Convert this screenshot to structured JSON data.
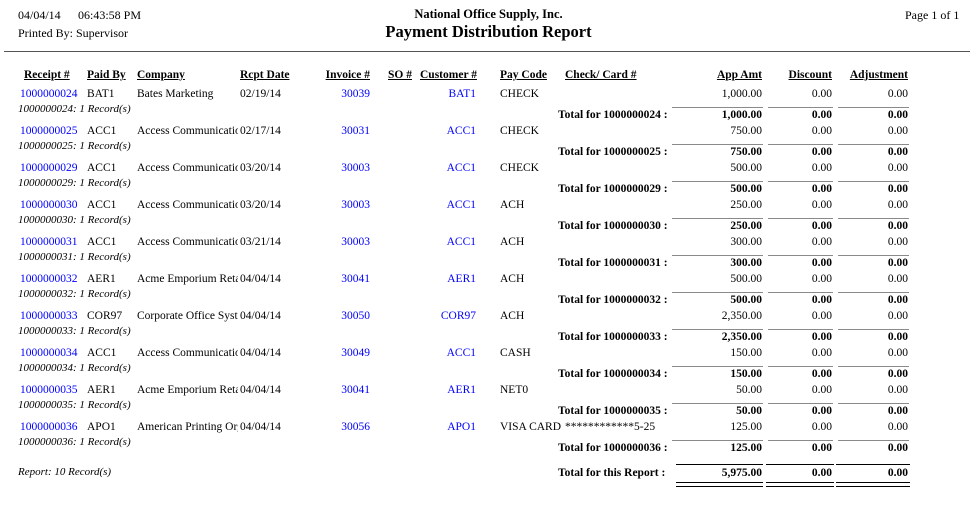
{
  "colors": {
    "link_blue": "#0000ff",
    "group_rule_gray": "#8a8a8a",
    "report_rule_black": "#000000"
  },
  "page_header": {
    "date": "04/04/14",
    "time": "06:43:58 PM",
    "printed_by": "Printed By: Supervisor",
    "company_name": "National Office Supply, Inc.",
    "report_title": "Payment Distribution Report",
    "page_info": "Page 1 of 1"
  },
  "columns": {
    "receipt": "Receipt #",
    "paid_by": "Paid By",
    "company": "Company",
    "rcpt_date": "Rcpt Date",
    "invoice": "Invoice #",
    "so": "SO #",
    "customer": "Customer #",
    "pay_code": "Pay Code",
    "check_card": "Check/ Card #",
    "app_amt": "App Amt",
    "discount": "Discount",
    "adjustment": "Adjustment"
  },
  "table": {
    "groups": [
      {
        "receipt": "1000000024",
        "paid_by": "BAT1",
        "company": "Bates Marketing",
        "rcpt_date": "02/19/14",
        "invoice": "30039",
        "so": "",
        "customer": "BAT1",
        "pay_code": "CHECK",
        "check_card": "",
        "app_amt": "1,000.00",
        "discount": "0.00",
        "adjustment": "0.00",
        "record_note": "1000000024: 1 Record(s)",
        "total_label": "Total for 1000000024 :",
        "total_app_amt": "1,000.00",
        "total_discount": "0.00",
        "total_adjustment": "0.00"
      },
      {
        "receipt": "1000000025",
        "paid_by": "ACC1",
        "company": "Access Communication",
        "rcpt_date": "02/17/14",
        "invoice": "30031",
        "so": "",
        "customer": "ACC1",
        "pay_code": "CHECK",
        "check_card": "",
        "app_amt": "750.00",
        "discount": "0.00",
        "adjustment": "0.00",
        "record_note": "1000000025: 1 Record(s)",
        "total_label": "Total for 1000000025 :",
        "total_app_amt": "750.00",
        "total_discount": "0.00",
        "total_adjustment": "0.00"
      },
      {
        "receipt": "1000000029",
        "paid_by": "ACC1",
        "company": "Access Communication",
        "rcpt_date": "03/20/14",
        "invoice": "30003",
        "so": "",
        "customer": "ACC1",
        "pay_code": "CHECK",
        "check_card": "",
        "app_amt": "500.00",
        "discount": "0.00",
        "adjustment": "0.00",
        "record_note": "1000000029: 1 Record(s)",
        "total_label": "Total for 1000000029 :",
        "total_app_amt": "500.00",
        "total_discount": "0.00",
        "total_adjustment": "0.00"
      },
      {
        "receipt": "1000000030",
        "paid_by": "ACC1",
        "company": "Access Communication",
        "rcpt_date": "03/20/14",
        "invoice": "30003",
        "so": "",
        "customer": "ACC1",
        "pay_code": "ACH",
        "check_card": "",
        "app_amt": "250.00",
        "discount": "0.00",
        "adjustment": "0.00",
        "record_note": "1000000030: 1 Record(s)",
        "total_label": "Total for 1000000030 :",
        "total_app_amt": "250.00",
        "total_discount": "0.00",
        "total_adjustment": "0.00"
      },
      {
        "receipt": "1000000031",
        "paid_by": "ACC1",
        "company": "Access Communication",
        "rcpt_date": "03/21/14",
        "invoice": "30003",
        "so": "",
        "customer": "ACC1",
        "pay_code": "ACH",
        "check_card": "",
        "app_amt": "300.00",
        "discount": "0.00",
        "adjustment": "0.00",
        "record_note": "1000000031: 1 Record(s)",
        "total_label": "Total for 1000000031 :",
        "total_app_amt": "300.00",
        "total_discount": "0.00",
        "total_adjustment": "0.00"
      },
      {
        "receipt": "1000000032",
        "paid_by": "AER1",
        "company": "Acme Emporium Retail",
        "rcpt_date": "04/04/14",
        "invoice": "30041",
        "so": "",
        "customer": "AER1",
        "pay_code": "ACH",
        "check_card": "",
        "app_amt": "500.00",
        "discount": "0.00",
        "adjustment": "0.00",
        "record_note": "1000000032: 1 Record(s)",
        "total_label": "Total for 1000000032 :",
        "total_app_amt": "500.00",
        "total_discount": "0.00",
        "total_adjustment": "0.00"
      },
      {
        "receipt": "1000000033",
        "paid_by": "COR97",
        "company": "Corporate Office System",
        "rcpt_date": "04/04/14",
        "invoice": "30050",
        "so": "",
        "customer": "COR97",
        "pay_code": "ACH",
        "check_card": "",
        "app_amt": "2,350.00",
        "discount": "0.00",
        "adjustment": "0.00",
        "record_note": "1000000033: 1 Record(s)",
        "total_label": "Total for 1000000033 :",
        "total_app_amt": "2,350.00",
        "total_discount": "0.00",
        "total_adjustment": "0.00"
      },
      {
        "receipt": "1000000034",
        "paid_by": "ACC1",
        "company": "Access Communication",
        "rcpt_date": "04/04/14",
        "invoice": "30049",
        "so": "",
        "customer": "ACC1",
        "pay_code": "CASH",
        "check_card": "",
        "app_amt": "150.00",
        "discount": "0.00",
        "adjustment": "0.00",
        "record_note": "1000000034: 1 Record(s)",
        "total_label": "Total for 1000000034 :",
        "total_app_amt": "150.00",
        "total_discount": "0.00",
        "total_adjustment": "0.00"
      },
      {
        "receipt": "1000000035",
        "paid_by": "AER1",
        "company": "Acme Emporium Retail",
        "rcpt_date": "04/04/14",
        "invoice": "30041",
        "so": "",
        "customer": "AER1",
        "pay_code": "NET0",
        "check_card": "",
        "app_amt": "50.00",
        "discount": "0.00",
        "adjustment": "0.00",
        "record_note": "1000000035: 1 Record(s)",
        "total_label": "Total for 1000000035 :",
        "total_app_amt": "50.00",
        "total_discount": "0.00",
        "total_adjustment": "0.00"
      },
      {
        "receipt": "1000000036",
        "paid_by": "APO1",
        "company": "American Printing Orga",
        "rcpt_date": "04/04/14",
        "invoice": "30056",
        "so": "",
        "customer": "APO1",
        "pay_code": "VISA CARD",
        "check_card": "************5-25",
        "app_amt": "125.00",
        "discount": "0.00",
        "adjustment": "0.00",
        "record_note": "1000000036: 1 Record(s)",
        "total_label": "Total for 1000000036 :",
        "total_app_amt": "125.00",
        "total_discount": "0.00",
        "total_adjustment": "0.00"
      }
    ]
  },
  "report_footer": {
    "record_count": "Report: 10 Record(s)",
    "total_label": "Total for this Report :",
    "app_amt": "5,975.00",
    "discount": "0.00",
    "adjustment": "0.00"
  }
}
